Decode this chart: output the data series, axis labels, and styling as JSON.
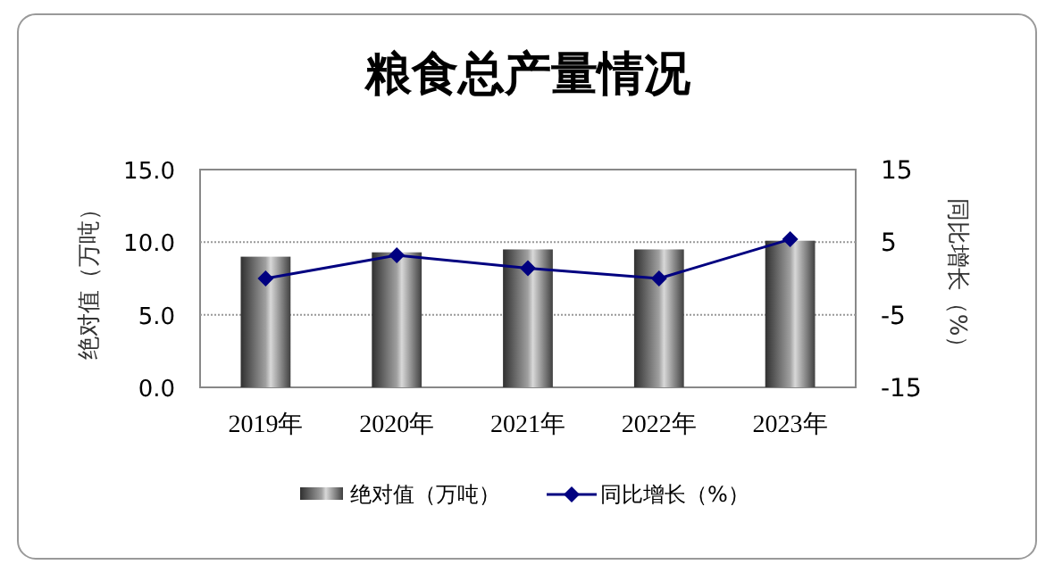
{
  "chart_data": {
    "type": "bar",
    "title": "粮食总产量情况",
    "ylabel": "绝对值（万吨）",
    "y2label": "同比增长（%）",
    "categories": [
      "2019年",
      "2020年",
      "2021年",
      "2022年",
      "2023年"
    ],
    "series": [
      {
        "name": "绝对值（万吨）",
        "color": "#a0a0a0",
        "values": [
          9.0,
          9.3,
          9.5,
          9.5,
          10.1
        ]
      },
      {
        "name": "同比增长（%）",
        "type": "line",
        "axis": "y2",
        "color": "#000080",
        "marker": "diamond",
        "values": [
          0.0,
          3.2,
          1.4,
          0.0,
          5.4
        ]
      }
    ],
    "ylim": [
      0,
      15
    ],
    "yticks": [
      {
        "value": 0,
        "label": "0.0"
      },
      {
        "value": 5,
        "label": "5.0"
      },
      {
        "value": 10,
        "label": "10.0"
      },
      {
        "value": 15,
        "label": "15.0"
      }
    ],
    "y2lim": [
      -15,
      15
    ],
    "y2ticks": [
      -15,
      -5,
      5,
      15
    ],
    "grid": "y",
    "legend": "bottom"
  }
}
